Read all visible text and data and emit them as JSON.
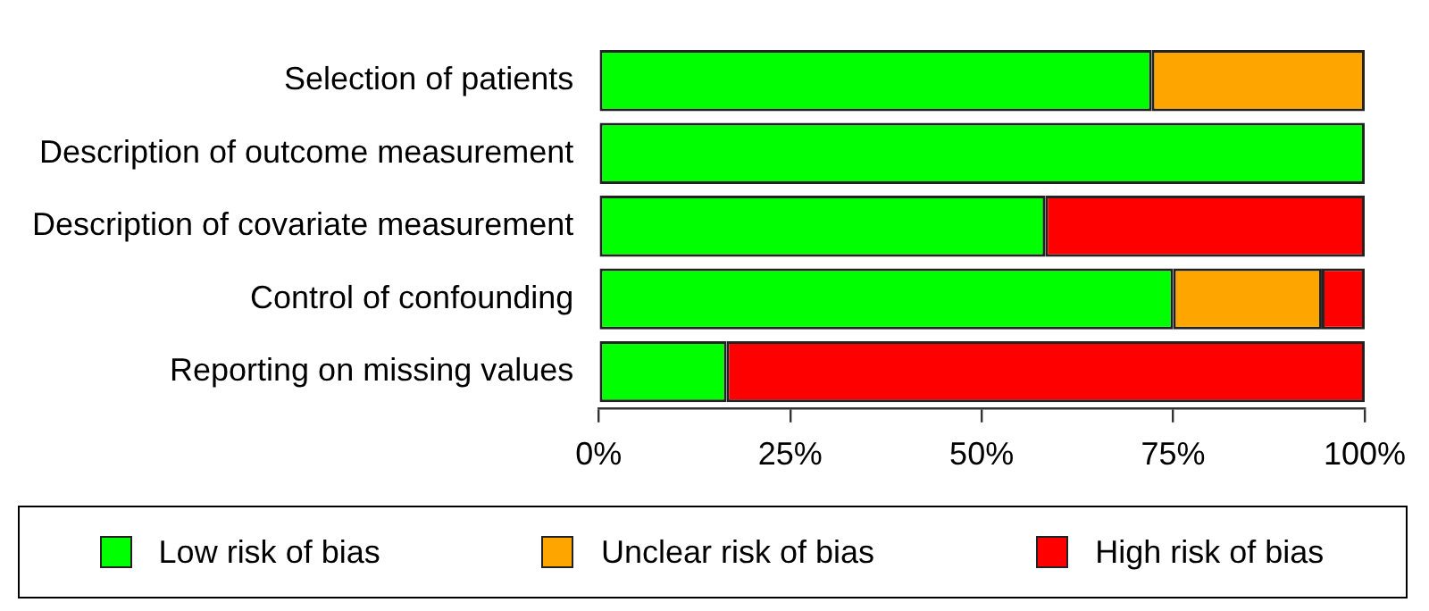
{
  "chart_data": {
    "type": "bar",
    "orientation": "horizontal",
    "stacked": true,
    "categories": [
      "Selection of patients",
      "Description of outcome measurement",
      "Description of covariate measurement",
      "Control of confounding",
      "Reporting on missing values"
    ],
    "series": [
      {
        "name": "Low risk of bias",
        "color": "#00ff00",
        "values": [
          72.2,
          100,
          58.3,
          75,
          16.7
        ]
      },
      {
        "name": "Unclear risk of bias",
        "color": "#ffa500",
        "values": [
          27.8,
          0,
          0,
          19.4,
          0
        ]
      },
      {
        "name": "High risk of bias",
        "color": "#ff0000",
        "values": [
          0,
          0,
          41.7,
          5.6,
          83.3
        ]
      }
    ],
    "xlim": [
      0,
      100
    ],
    "xticks": [
      {
        "value": 0,
        "label": "0%"
      },
      {
        "value": 25,
        "label": "25%"
      },
      {
        "value": 50,
        "label": "50%"
      },
      {
        "value": 75,
        "label": "75%"
      },
      {
        "value": 100,
        "label": "100%"
      }
    ],
    "grid": false,
    "legend": "bottom"
  }
}
